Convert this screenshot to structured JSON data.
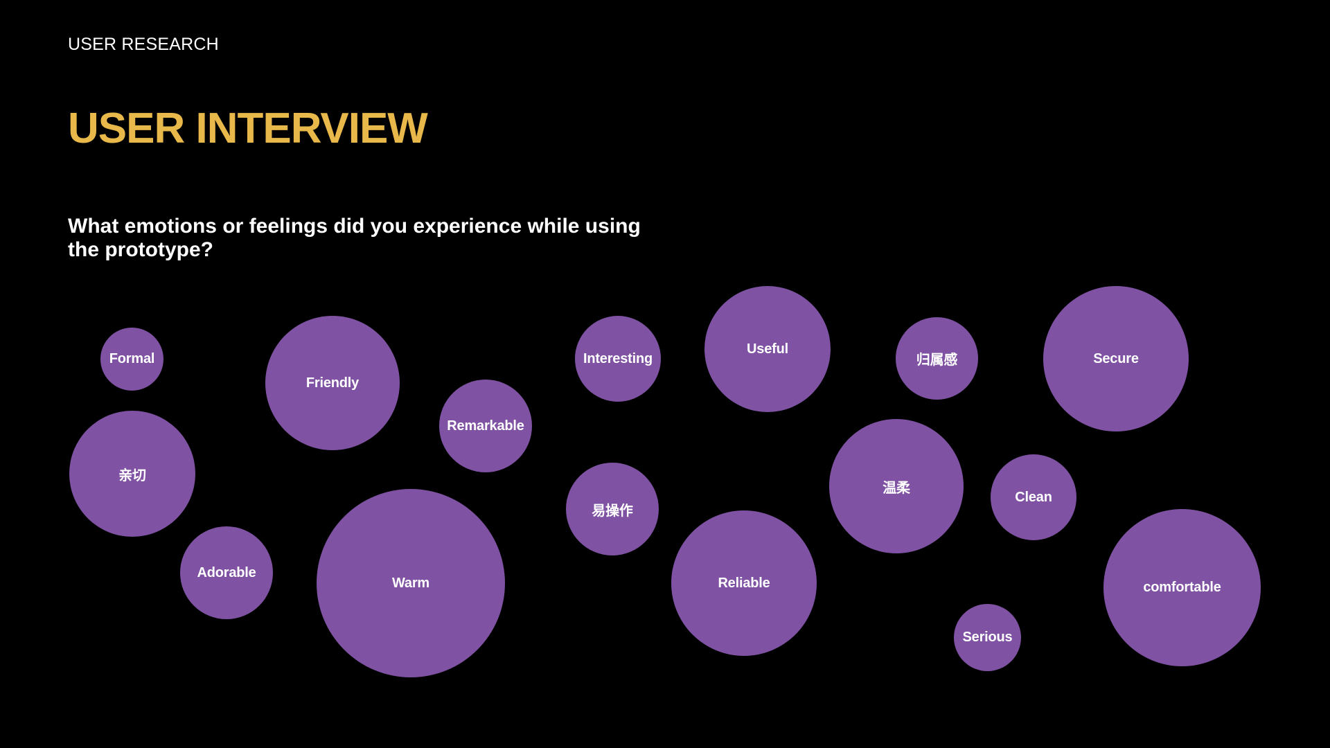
{
  "header": {
    "eyebrow": "USER RESEARCH",
    "title": "USER INTERVIEW",
    "question": "What emotions or feelings did you experience while using the prototype?"
  },
  "colors": {
    "background": "#000000",
    "title": "#e8b84a",
    "bubble": "#7f52a3",
    "text": "#ffffff"
  },
  "bubbles": [
    {
      "id": "formal",
      "label": "Formal"
    },
    {
      "id": "friendly",
      "label": "Friendly"
    },
    {
      "id": "qinqie",
      "label": "亲切"
    },
    {
      "id": "remarkable",
      "label": "Remarkable"
    },
    {
      "id": "adorable",
      "label": "Adorable"
    },
    {
      "id": "warm",
      "label": "Warm"
    },
    {
      "id": "interesting",
      "label": "Interesting"
    },
    {
      "id": "yicaozuo",
      "label": "易操作"
    },
    {
      "id": "useful",
      "label": "Useful"
    },
    {
      "id": "reliable",
      "label": "Reliable"
    },
    {
      "id": "guishugan",
      "label": "归属感"
    },
    {
      "id": "wenrou",
      "label": "温柔"
    },
    {
      "id": "secure",
      "label": "Secure"
    },
    {
      "id": "clean",
      "label": "Clean"
    },
    {
      "id": "serious",
      "label": "Serious"
    },
    {
      "id": "comfortable",
      "label": "comfortable"
    }
  ]
}
